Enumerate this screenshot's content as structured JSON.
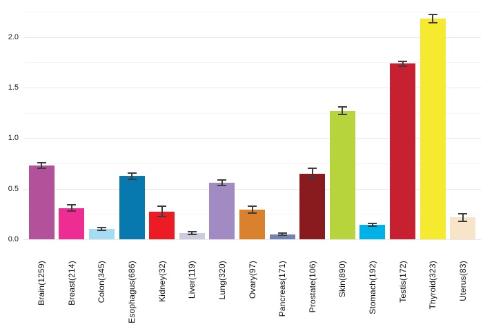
{
  "chart_data": {
    "type": "bar",
    "title": "",
    "xlabel": "",
    "ylabel": "",
    "legend": "none",
    "grid": "horizontal",
    "background": "#ffffff",
    "categories": [
      "Brain(1259)",
      "Breast(214)",
      "Colon(345)",
      "Esophagus(686)",
      "Kidney(32)",
      "Liver(119)",
      "Lung(320)",
      "Ovary(97)",
      "Pancreas(171)",
      "Prostate(106)",
      "Skin(890)",
      "Stomach(192)",
      "Testis(172)",
      "Thyroid(323)",
      "Uterus(83)"
    ],
    "values": [
      0.73,
      0.31,
      0.105,
      0.625,
      0.275,
      0.063,
      0.557,
      0.292,
      0.05,
      0.65,
      1.27,
      0.145,
      1.737,
      2.18,
      0.215
    ],
    "errors": [
      0.028,
      0.03,
      0.013,
      0.029,
      0.05,
      0.014,
      0.028,
      0.034,
      0.008,
      0.052,
      0.036,
      0.014,
      0.024,
      0.041,
      0.04
    ],
    "colors": [
      "#b1529b",
      "#ed2d92",
      "#a5dcf5",
      "#0779ae",
      "#ed1c24",
      "#cbccdd",
      "#a28bc2",
      "#d9812c",
      "#7283b2",
      "#891a1d",
      "#b7d43c",
      "#00b1e8",
      "#c72030",
      "#f5ea2e",
      "#f8e4c8"
    ],
    "ylim": [
      0,
      2.365
    ],
    "y_tick_labels": [
      "0.0",
      "0.5",
      "1.0",
      "1.5",
      "2.0"
    ],
    "y_major_ticks": [
      0,
      0.5,
      1.0,
      1.5,
      2.0
    ],
    "y_minor_ticks": [
      0.25,
      0.75,
      1.25,
      1.75,
      2.25
    ],
    "grid_major_color": "#e9e9e9",
    "grid_minor_color": "#f5f5f5",
    "error_bar_color": "#3c3c3c",
    "axis_text_color": "#1a1a1a"
  }
}
